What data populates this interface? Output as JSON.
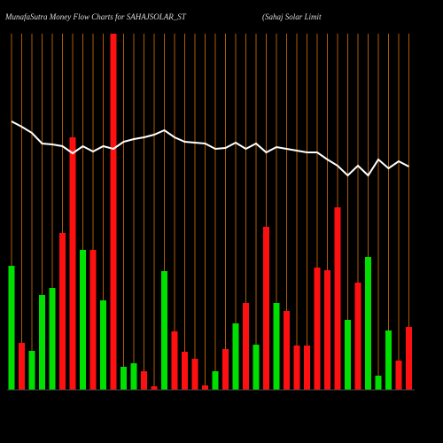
{
  "chart_data": {
    "type": "bar",
    "title": "MunafaSutra  Money Flow  Charts for SAHAJSOLAR_ST",
    "subtitle": "(Sahaj Solar Limit",
    "categories": [
      null,
      null,
      null,
      null,
      null,
      null,
      null,
      null,
      null,
      null,
      null,
      null,
      null,
      null,
      null,
      null,
      null,
      null,
      null,
      null,
      null,
      null,
      null,
      null,
      null,
      null,
      null,
      null,
      null,
      null,
      null,
      null,
      null,
      null,
      null,
      null,
      null,
      null,
      null,
      null
    ],
    "values": [
      140,
      53,
      44,
      107,
      115,
      177,
      285,
      158,
      158,
      101,
      402,
      26,
      30,
      21,
      4,
      134,
      66,
      43,
      35,
      5,
      21,
      46,
      75,
      98,
      51,
      184,
      98,
      89,
      50,
      50,
      138,
      135,
      206,
      79,
      121,
      150,
      16,
      67,
      33,
      71
    ],
    "colors": [
      "#00e000",
      "#ff1010",
      "#00e000",
      "#00e000",
      "#00e000",
      "#ff1010",
      "#ff1010",
      "#00e000",
      "#ff1010",
      "#00e000",
      "#ff1010",
      "#00e000",
      "#00e000",
      "#ff1010",
      "#ff1010",
      "#00e000",
      "#ff1010",
      "#ff1010",
      "#ff1010",
      "#ff1010",
      "#00e000",
      "#ff1010",
      "#00e000",
      "#ff1010",
      "#00e000",
      "#ff1010",
      "#00e000",
      "#ff1010",
      "#ff1010",
      "#ff1010",
      "#ff1010",
      "#ff1010",
      "#ff1010",
      "#00e000",
      "#ff1010",
      "#00e000",
      "#00e000",
      "#00e000",
      "#ff1010",
      "#ff1010"
    ],
    "line": {
      "color": "#ffffff",
      "values": [
        303,
        297,
        290,
        278,
        277,
        275,
        267,
        275,
        269,
        275,
        272,
        280,
        283,
        285,
        288,
        293,
        285,
        280,
        279,
        278,
        272,
        273,
        279,
        272,
        278,
        268,
        274,
        272,
        270,
        268,
        268,
        260,
        253,
        242,
        253,
        242,
        260,
        250,
        258,
        252
      ]
    },
    "grid": true,
    "grid_color": "#b05a00"
  }
}
